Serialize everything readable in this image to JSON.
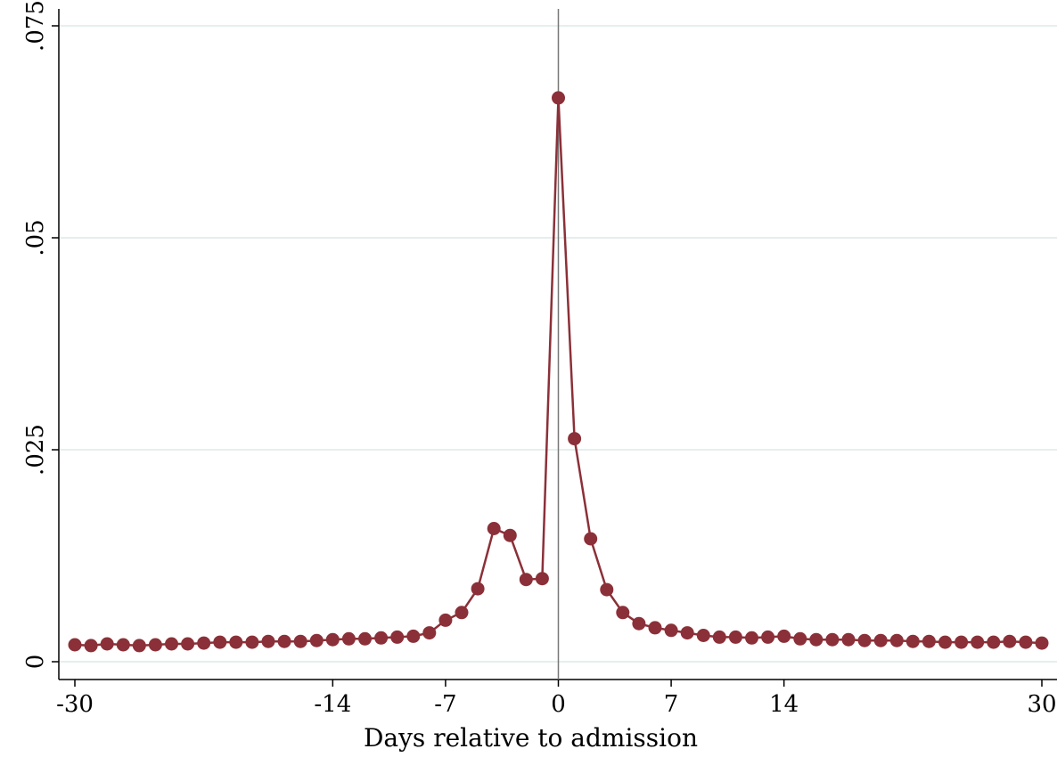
{
  "chart_data": {
    "type": "line",
    "title": "",
    "xlabel": "Days relative to admission",
    "ylabel": "",
    "xlim": [
      -30,
      30
    ],
    "ylim": [
      0,
      0.075
    ],
    "x_ticks": [
      -30,
      -14,
      -7,
      0,
      7,
      14,
      30
    ],
    "x_tick_labels": [
      "-30",
      "-14",
      "-7",
      "0",
      "7",
      "14",
      "30"
    ],
    "y_ticks": [
      0,
      0.025,
      0.05,
      0.075
    ],
    "y_tick_labels": [
      "0",
      ".025",
      ".05",
      ".075"
    ],
    "grid": "horizontal",
    "reference_line_x": 0,
    "series": [
      {
        "color": "#8b3038",
        "x": [
          -30,
          -29,
          -28,
          -27,
          -26,
          -25,
          -24,
          -23,
          -22,
          -21,
          -20,
          -19,
          -18,
          -17,
          -16,
          -15,
          -14,
          -13,
          -12,
          -11,
          -10,
          -9,
          -8,
          -7,
          -6,
          -5,
          -4,
          -3,
          -2,
          -1,
          0,
          1,
          2,
          3,
          4,
          5,
          6,
          7,
          8,
          9,
          10,
          11,
          12,
          13,
          14,
          15,
          16,
          17,
          18,
          19,
          20,
          21,
          22,
          23,
          24,
          25,
          26,
          27,
          28,
          29,
          30
        ],
        "y": [
          0.002,
          0.0019,
          0.0021,
          0.002,
          0.0019,
          0.002,
          0.0021,
          0.0021,
          0.0022,
          0.0023,
          0.0023,
          0.0023,
          0.0024,
          0.0024,
          0.0024,
          0.0025,
          0.0026,
          0.0027,
          0.0027,
          0.0028,
          0.0029,
          0.003,
          0.0034,
          0.0049,
          0.0058,
          0.0086,
          0.0157,
          0.0149,
          0.0097,
          0.0098,
          0.0665,
          0.0263,
          0.0145,
          0.0085,
          0.0058,
          0.0045,
          0.004,
          0.0037,
          0.0034,
          0.0031,
          0.0029,
          0.0029,
          0.0028,
          0.0029,
          0.003,
          0.0027,
          0.0026,
          0.0026,
          0.0026,
          0.0025,
          0.0025,
          0.0025,
          0.0024,
          0.0024,
          0.0023,
          0.0023,
          0.0023,
          0.0023,
          0.0024,
          0.0023,
          0.0022
        ]
      }
    ]
  }
}
